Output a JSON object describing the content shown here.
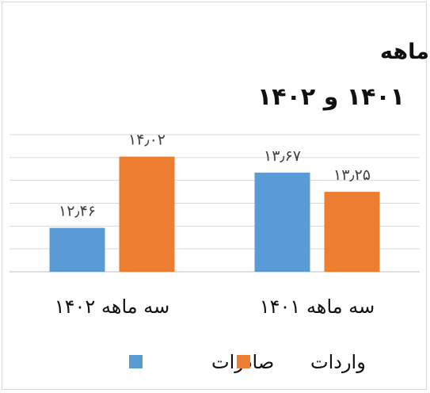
{
  "chart_data": {
    "type": "bar",
    "title": "ارزش صادرات و واردات در سه ماهه",
    "subtitle": "۱۴۰۱ و ۱۴۰۲",
    "categories": [
      "سه ماهه ۱۴۰۲",
      "سه ماهه ۱۴۰۱"
    ],
    "series": [
      {
        "name": "صادرات",
        "color": "#5b9bd5",
        "values": [
          12.46,
          13.67
        ],
        "labels": [
          "۱۲٫۴۶",
          "۱۳٫۶۷"
        ]
      },
      {
        "name": "واردات",
        "color": "#ed7d31",
        "values": [
          14.02,
          13.25
        ],
        "labels": [
          "۱۴٫۰۲",
          "۱۳٫۲۵"
        ]
      }
    ],
    "ylim": [
      11.5,
      14.5
    ],
    "grid": true,
    "legend_position": "bottom"
  }
}
